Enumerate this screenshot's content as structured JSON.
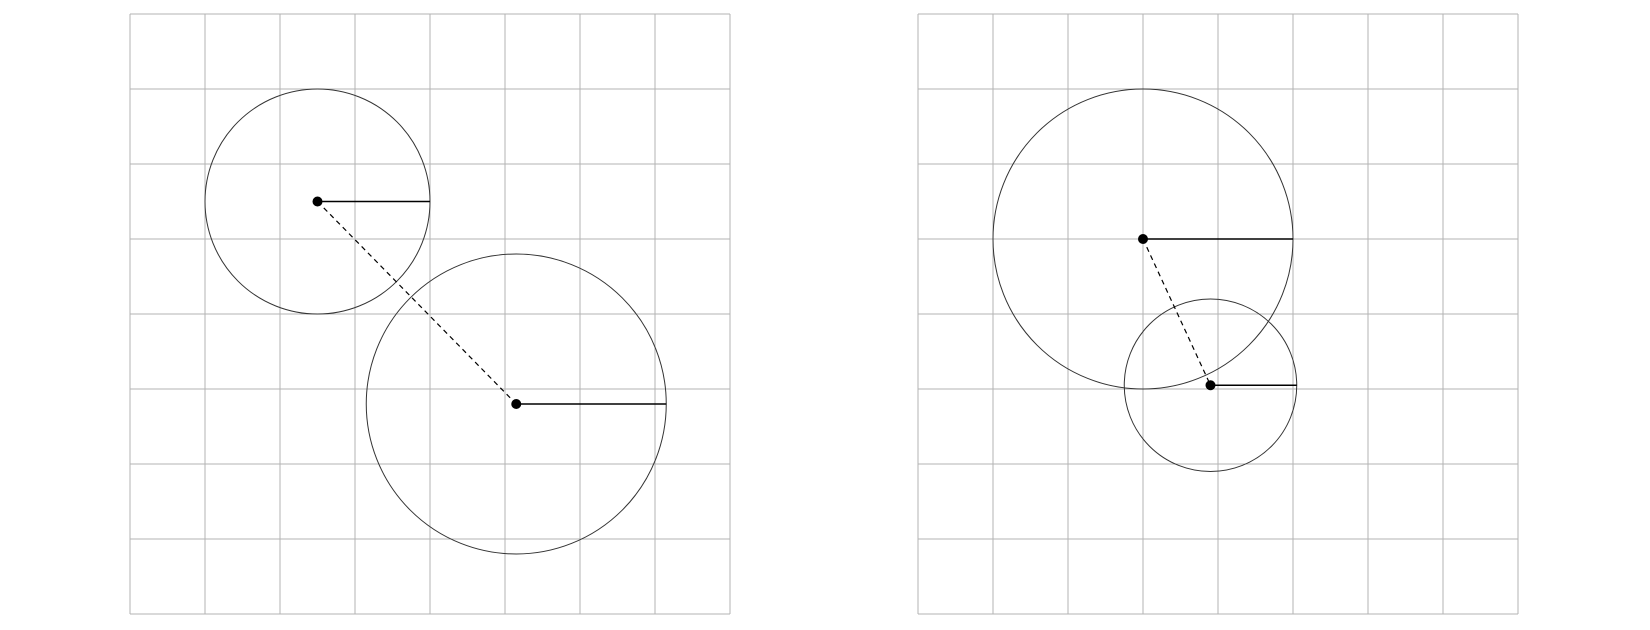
{
  "colors": {
    "background": "#ffffff",
    "grid": "#b3b3b3",
    "circle": "#333333",
    "radius": "#000000",
    "center_line": "#000000",
    "center_point": "#000000"
  },
  "grid_size": 8,
  "panels": [
    {
      "id": "left",
      "description_key": "two-circles-apart",
      "circles": [
        {
          "id": "small",
          "center": [
            2.5,
            5.5
          ],
          "radius": 1.5
        },
        {
          "id": "large",
          "center": [
            5.15,
            2.8
          ],
          "radius": 2.0
        }
      ]
    },
    {
      "id": "right",
      "description_key": "two-circles-overlapping",
      "circles": [
        {
          "id": "large",
          "center": [
            3.0,
            5.0
          ],
          "radius": 2.0
        },
        {
          "id": "small",
          "center": [
            3.9,
            3.05
          ],
          "radius": 1.15
        }
      ]
    }
  ]
}
